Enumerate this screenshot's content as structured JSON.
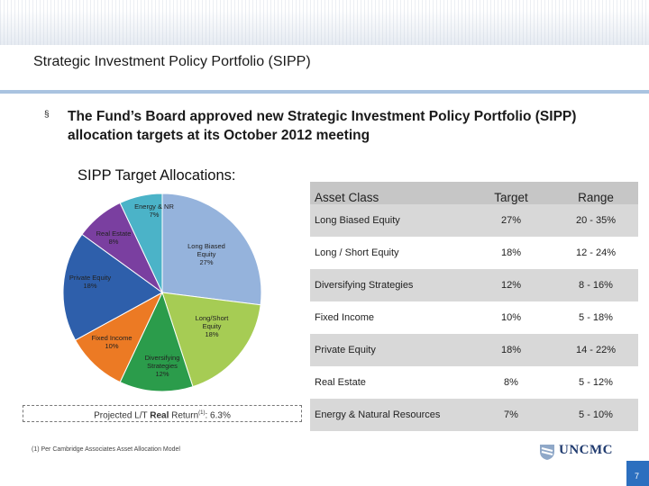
{
  "slide": {
    "title": "Strategic Investment Policy Portfolio (SIPP)",
    "bullet_marker": "§",
    "bullet_text": "The Fund’s Board approved new Strategic Investment Policy Portfolio (SIPP) allocation targets at its October 2012 meeting",
    "sub_title": "SIPP Target Allocations:",
    "return_label": "Projected L/T ",
    "return_bold": "Real",
    "return_mid": " Return",
    "return_footref": "(1)",
    "return_value": ": 6.3%",
    "footnote": "(1) Per Cambridge Associates Asset Allocation Model",
    "logo_text": "UNCMC",
    "page_number": "7"
  },
  "table": {
    "headers": [
      "Asset Class",
      "Target",
      "Range"
    ],
    "rows": [
      {
        "asset": "Long Biased Equity",
        "target": "27%",
        "range": "20 - 35%"
      },
      {
        "asset": "Long / Short Equity",
        "target": "18%",
        "range": "12 - 24%"
      },
      {
        "asset": "Diversifying Strategies",
        "target": "12%",
        "range": "8 - 16%"
      },
      {
        "asset": "Fixed Income",
        "target": "10%",
        "range": "5 - 18%"
      },
      {
        "asset": "Private Equity",
        "target": "18%",
        "range": "14 - 22%"
      },
      {
        "asset": "Real Estate",
        "target": "8%",
        "range": "5 - 12%"
      },
      {
        "asset": "Energy & Natural Resources",
        "target": "7%",
        "range": "5 - 10%"
      }
    ]
  },
  "chart_data": {
    "type": "pie",
    "title": "SIPP Target Allocations:",
    "slices": [
      {
        "label": [
          "Long Biased",
          "Equity",
          "27%"
        ],
        "value": 27,
        "color": "#95b3dc"
      },
      {
        "label": [
          "Long/Short",
          "Equity",
          "18%"
        ],
        "value": 18,
        "color": "#a6cc54"
      },
      {
        "label": [
          "Diversifying",
          "Strategies",
          "12%"
        ],
        "value": 12,
        "color": "#2b9c4b"
      },
      {
        "label": [
          "Fixed Income",
          "10%"
        ],
        "value": 10,
        "color": "#ec7a24"
      },
      {
        "label": [
          "Private Equity",
          "18%"
        ],
        "value": 18,
        "color": "#2e5fab"
      },
      {
        "label": [
          "Real Estate",
          "8%"
        ],
        "value": 8,
        "color": "#7a3fa0"
      },
      {
        "label": [
          "Energy & NR",
          "7%"
        ],
        "value": 7,
        "color": "#4bb3c8"
      }
    ]
  }
}
